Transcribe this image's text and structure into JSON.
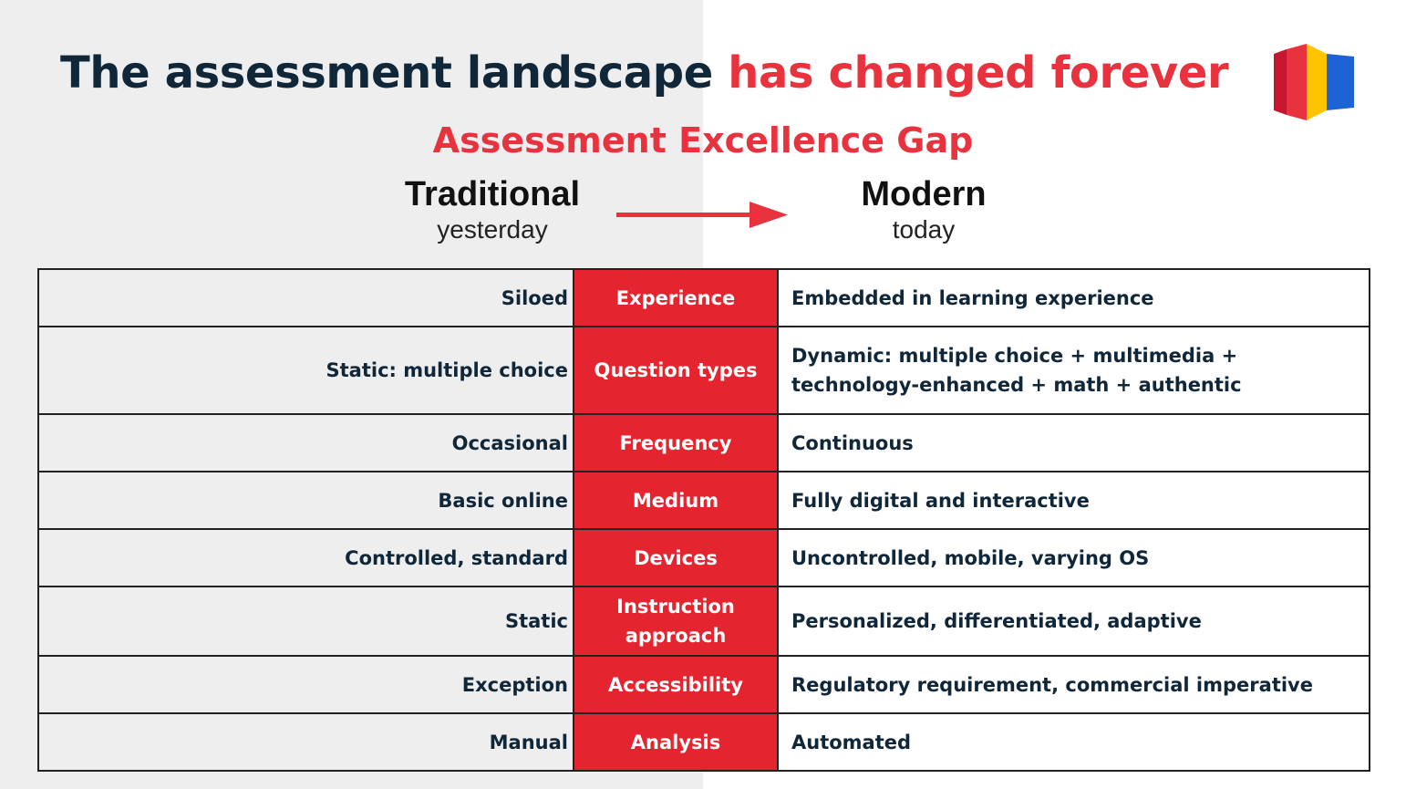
{
  "title": {
    "part1": "The assessment landscape",
    "part2": "has changed forever"
  },
  "subtitle": "Assessment Excellence Gap",
  "columns": {
    "traditional": {
      "heading": "Traditional",
      "sub": "yesterday"
    },
    "modern": {
      "heading": "Modern",
      "sub": "today"
    }
  },
  "rows": [
    {
      "traditional": "Siloed",
      "category": "Experience",
      "modern": "Embedded in learning experience"
    },
    {
      "traditional": "Static: multiple choice",
      "category": "Question types",
      "modern": "Dynamic: multiple choice + multimedia + technology-enhanced + math + authentic"
    },
    {
      "traditional": "Occasional",
      "category": "Frequency",
      "modern": "Continuous"
    },
    {
      "traditional": "Basic online",
      "category": "Medium",
      "modern": "Fully digital and interactive"
    },
    {
      "traditional": "Controlled, standard",
      "category": "Devices",
      "modern": "Uncontrolled, mobile, varying OS"
    },
    {
      "traditional": "Static",
      "category": "Instruction approach",
      "modern": "Personalized, differentiated, adaptive"
    },
    {
      "traditional": "Exception",
      "category": "Accessibility",
      "modern": "Regulatory requirement, commercial imperative"
    },
    {
      "traditional": "Manual",
      "category": "Analysis",
      "modern": "Automated"
    }
  ],
  "colors": {
    "accent_red": "#e8333f",
    "category_red": "#e42530",
    "navy": "#10273a",
    "left_background": "#eeeeee",
    "logo": [
      "#c5172f",
      "#e8333f",
      "#ffc400",
      "#1e63d6"
    ]
  },
  "icons": {
    "logo": "brand-logo-icon",
    "arrow": "arrow-right-icon"
  }
}
